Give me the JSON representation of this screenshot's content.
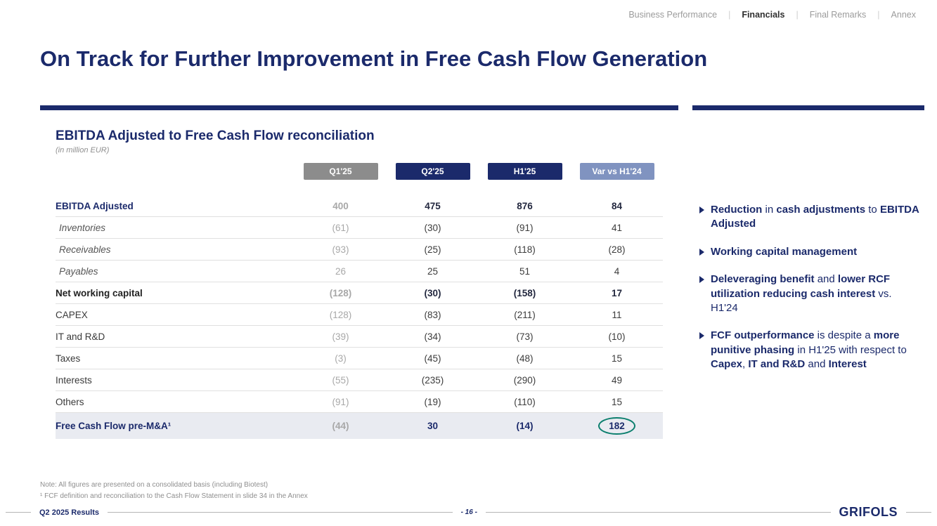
{
  "colors": {
    "navy": "#1b2a6b",
    "gray-pill": "#8c8c8c",
    "steel-pill": "#8093c0",
    "teal": "#0c7f6e",
    "muted": "#a8a8a8",
    "row-line": "#e0e0e0",
    "total-bg": "#e9ebf1"
  },
  "nav": {
    "items": [
      {
        "label": "Business Performance",
        "active": false
      },
      {
        "label": "Financials",
        "active": true
      },
      {
        "label": "Final Remarks",
        "active": false
      },
      {
        "label": "Annex",
        "active": false
      }
    ]
  },
  "title": "On Track for Further Improvement in Free Cash Flow Generation",
  "table_panel": {
    "heading": "EBITDA Adjusted to Free Cash Flow reconciliation",
    "unit_note": "(in million EUR)",
    "columns": [
      {
        "label": "Q1'25",
        "style": "gray"
      },
      {
        "label": "Q2'25",
        "style": "navy"
      },
      {
        "label": "H1'25",
        "style": "navy"
      },
      {
        "label": "Var vs H1'24",
        "style": "steel"
      }
    ],
    "rows": [
      {
        "label": "EBITDA Adjusted",
        "style": "ebitda",
        "values": [
          "400",
          "475",
          "876",
          "84"
        ]
      },
      {
        "label": "Inventories",
        "style": "detail",
        "values": [
          "(61)",
          "(30)",
          "(91)",
          "41"
        ]
      },
      {
        "label": "Receivables",
        "style": "detail",
        "values": [
          "(93)",
          "(25)",
          "(118)",
          "(28)"
        ]
      },
      {
        "label": "Payables",
        "style": "detail",
        "values": [
          "26",
          "25",
          "51",
          "4"
        ]
      },
      {
        "label": "Net working capital",
        "style": "subtotal",
        "values": [
          "(128)",
          "(30)",
          "(158)",
          "17"
        ]
      },
      {
        "label": "CAPEX",
        "style": "plain",
        "values": [
          "(128)",
          "(83)",
          "(211)",
          "11"
        ]
      },
      {
        "label": "IT and R&D",
        "style": "plain",
        "values": [
          "(39)",
          "(34)",
          "(73)",
          "(10)"
        ]
      },
      {
        "label": "Taxes",
        "style": "plain",
        "values": [
          "(3)",
          "(45)",
          "(48)",
          "15"
        ]
      },
      {
        "label": "Interests",
        "style": "plain",
        "values": [
          "(55)",
          "(235)",
          "(290)",
          "49"
        ]
      },
      {
        "label": "Others",
        "style": "plain",
        "values": [
          "(91)",
          "(19)",
          "(110)",
          "15"
        ]
      },
      {
        "label": "Free Cash Flow pre-M&A¹",
        "style": "total",
        "circle_last": true,
        "values": [
          "(44)",
          "30",
          "(14)",
          "182"
        ]
      }
    ]
  },
  "highlights": {
    "bullets": [
      {
        "segments": [
          {
            "t": "Reduction",
            "b": true
          },
          {
            "t": " in ",
            "b": false
          },
          {
            "t": "cash adjustments",
            "b": true
          },
          {
            "t": " to ",
            "b": false
          },
          {
            "t": "EBITDA Adjusted",
            "b": true
          }
        ]
      },
      {
        "segments": [
          {
            "t": "Working capital management",
            "b": true
          }
        ]
      },
      {
        "segments": [
          {
            "t": "Deleveraging benefit",
            "b": true
          },
          {
            "t": " and ",
            "b": false
          },
          {
            "t": "lower RCF utilization reducing cash interest",
            "b": true
          },
          {
            "t": " vs. H1'24",
            "b": false
          }
        ]
      },
      {
        "segments": [
          {
            "t": "FCF outperformance",
            "b": true
          },
          {
            "t": " is despite a ",
            "b": false
          },
          {
            "t": "more punitive phasing",
            "b": true
          },
          {
            "t": " in H1'25 with respect to ",
            "b": false
          },
          {
            "t": "Capex",
            "b": true
          },
          {
            "t": ", ",
            "b": false
          },
          {
            "t": "IT and R&D",
            "b": true
          },
          {
            "t": " and ",
            "b": false
          },
          {
            "t": "Interest",
            "b": true
          }
        ]
      }
    ]
  },
  "notes": {
    "line1": "Note: All figures are presented on a consolidated basis (including Biotest)",
    "line2": "¹ FCF definition and reconciliation to the Cash Flow Statement in slide 34 in the Annex"
  },
  "footer": {
    "left": "Q2 2025 Results",
    "page": "- 16 -",
    "logo": "GRIFOLS"
  }
}
